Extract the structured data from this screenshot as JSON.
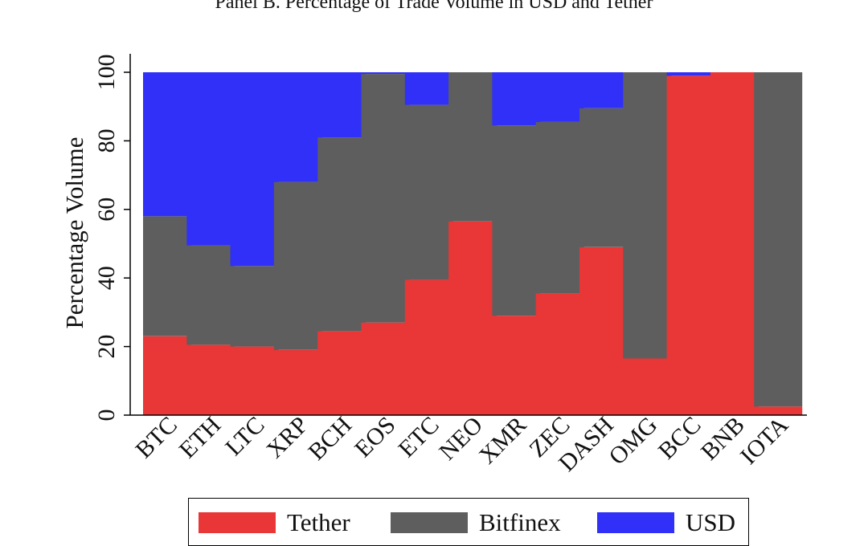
{
  "chart_data": {
    "type": "bar",
    "stacked": true,
    "title": "Panel B. Percentage of Trade Volume in USD and Tether",
    "xlabel": "",
    "ylabel": "Percentage Volume",
    "ylim": [
      0,
      100
    ],
    "yticks": [
      0,
      20,
      40,
      60,
      80,
      100
    ],
    "categories": [
      "BTC",
      "ETH",
      "LTC",
      "XRP",
      "BCH",
      "EOS",
      "ETC",
      "NEO",
      "XMR",
      "ZEC",
      "DASH",
      "OMG",
      "BCC",
      "BNB",
      "IOTA"
    ],
    "series": [
      {
        "name": "Tether",
        "color": "#e93636",
        "values": [
          23,
          20.5,
          20,
          19,
          24.5,
          27,
          39.5,
          56.5,
          29,
          35.5,
          49,
          16.5,
          99,
          100,
          2.5
        ]
      },
      {
        "name": "Bitfinex",
        "color": "#5e5e5e",
        "values": [
          35,
          29,
          23.5,
          49,
          56.5,
          72.5,
          51,
          43.5,
          55.5,
          50,
          40.5,
          83.5,
          0,
          0,
          97.5
        ]
      },
      {
        "name": "USD",
        "color": "#3030f8",
        "values": [
          42,
          50.5,
          56.5,
          32,
          19,
          0.5,
          9.5,
          0,
          15.5,
          14.5,
          10.5,
          0,
          1,
          0,
          0
        ]
      }
    ],
    "grid": false,
    "legend_position": "bottom"
  }
}
